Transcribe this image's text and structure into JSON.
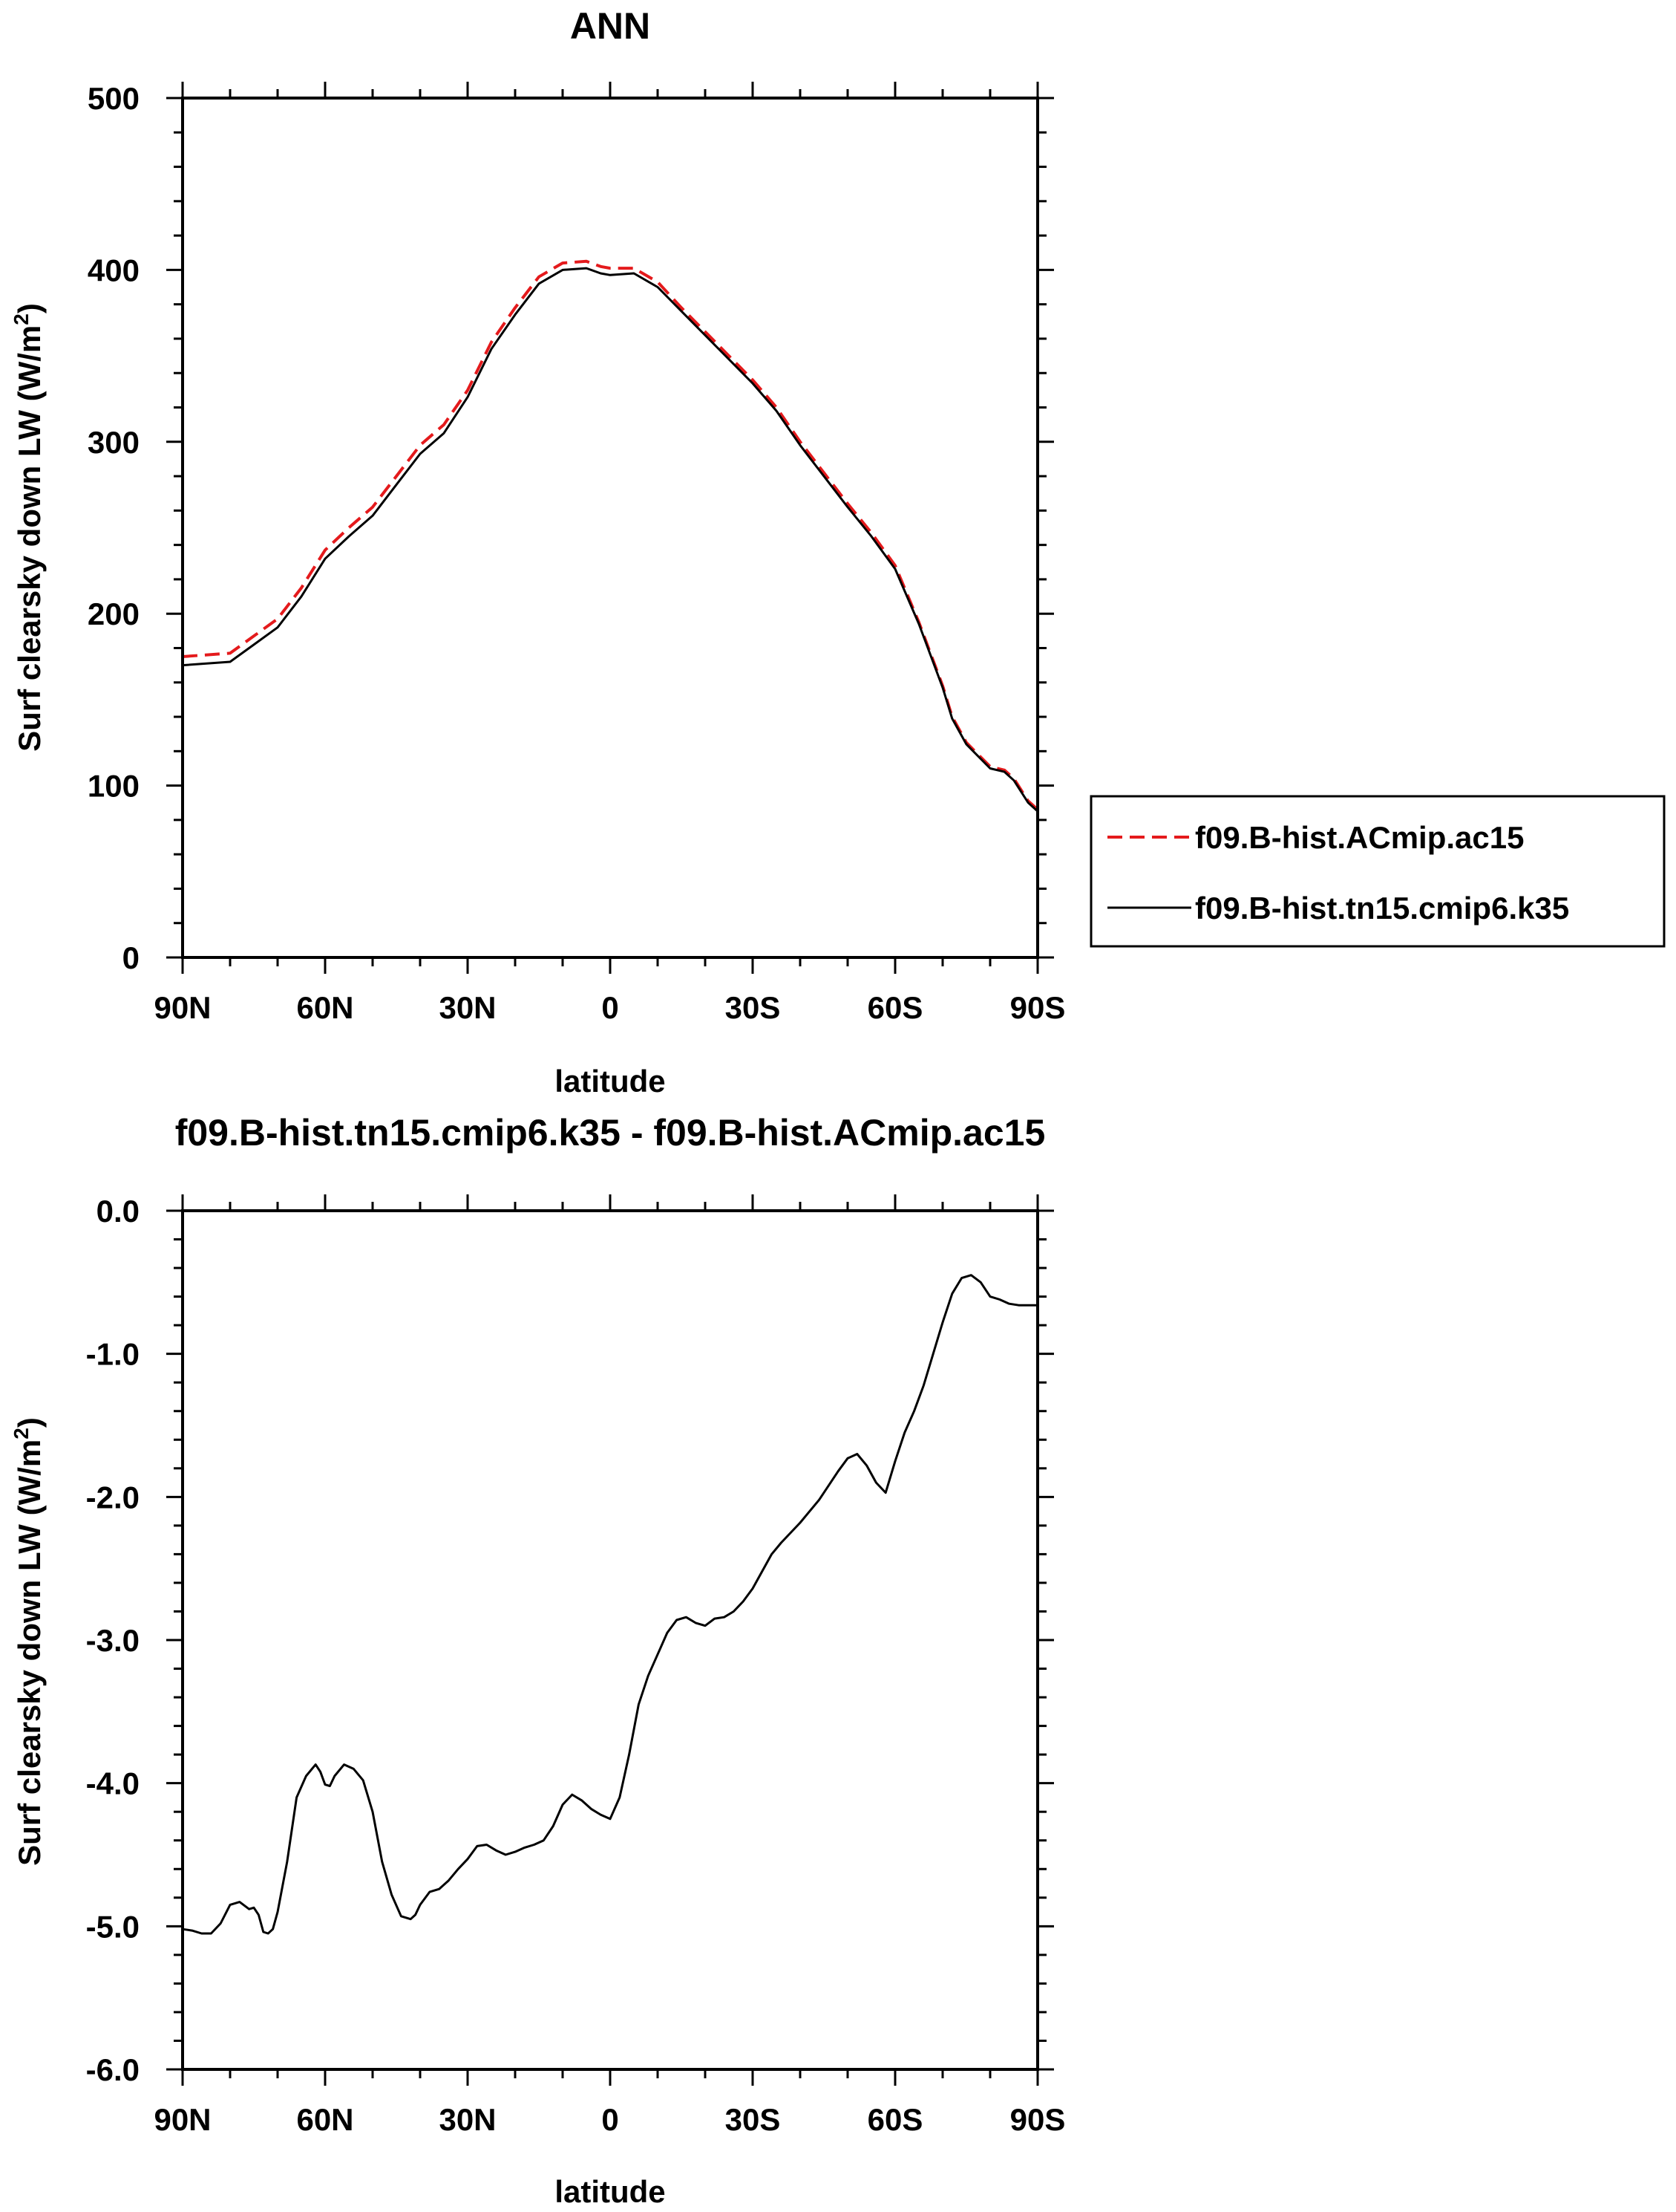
{
  "chart_data": [
    {
      "type": "line",
      "title": "ANN",
      "xlabel": "latitude",
      "ylabel": "Surf clearsky down LW (W/m2)",
      "ylabel_main": "Surf clearsky down LW (W/m",
      "ylabel_sup": "2",
      "ylabel_end": ")",
      "xlim": [
        90,
        -90
      ],
      "ylim": [
        0,
        500
      ],
      "x_ticks": [
        90,
        60,
        30,
        0,
        -30,
        -60,
        -90
      ],
      "x_tick_labels": [
        "90N",
        "60N",
        "30N",
        "0",
        "30S",
        "60S",
        "90S"
      ],
      "y_ticks": [
        0,
        100,
        200,
        300,
        400,
        500
      ],
      "y_tick_labels": [
        "0",
        "100",
        "200",
        "300",
        "400",
        "500"
      ],
      "legend_position": "right",
      "series": [
        {
          "name": "f09.B-hist.ACmip.ac15",
          "color": "#e41a1c",
          "dash": "dashed",
          "x": [
            90,
            80,
            75,
            70,
            65,
            60,
            55,
            50,
            45,
            40,
            35,
            30,
            25,
            20,
            15,
            10,
            5,
            2,
            0,
            -5,
            -10,
            -15,
            -20,
            -25,
            -30,
            -35,
            -40,
            -45,
            -50,
            -55,
            -60,
            -65,
            -70,
            -72,
            -75,
            -80,
            -83,
            -85,
            -88,
            -90
          ],
          "y": [
            175,
            177,
            187,
            197,
            215,
            237,
            250,
            262,
            280,
            298,
            310,
            330,
            358,
            378,
            396,
            404,
            405,
            402,
            401,
            401,
            393,
            378,
            364,
            350,
            336,
            320,
            300,
            282,
            264,
            247,
            228,
            195,
            158,
            140,
            125,
            111,
            109,
            104,
            91,
            86
          ]
        },
        {
          "name": "f09.B-hist.tn15.cmip6.k35",
          "color": "#000000",
          "dash": "solid",
          "x": [
            90,
            80,
            75,
            70,
            65,
            60,
            55,
            50,
            45,
            40,
            35,
            30,
            25,
            20,
            15,
            10,
            5,
            2,
            0,
            -5,
            -10,
            -15,
            -20,
            -25,
            -30,
            -35,
            -40,
            -45,
            -50,
            -55,
            -60,
            -65,
            -70,
            -72,
            -75,
            -80,
            -83,
            -85,
            -88,
            -90
          ],
          "y": [
            170,
            172,
            182,
            192,
            210,
            232,
            245,
            257,
            275,
            293,
            305,
            326,
            354,
            374,
            392,
            400,
            401,
            398,
            397,
            398,
            390,
            376,
            362,
            348,
            334,
            318,
            298,
            280,
            262,
            245,
            226,
            194,
            157,
            139,
            124,
            110,
            108,
            103,
            90,
            85
          ]
        }
      ]
    },
    {
      "type": "line",
      "title": "f09.B-hist.tn15.cmip6.k35 - f09.B-hist.ACmip.ac15",
      "xlabel": "latitude",
      "ylabel": "Surf clearsky down LW (W/m2)",
      "ylabel_main": "Surf clearsky down LW (W/m",
      "ylabel_sup": "2",
      "ylabel_end": ")",
      "xlim": [
        90,
        -90
      ],
      "ylim": [
        -6,
        0
      ],
      "x_ticks": [
        90,
        60,
        30,
        0,
        -30,
        -60,
        -90
      ],
      "x_tick_labels": [
        "90N",
        "60N",
        "30N",
        "0",
        "30S",
        "60S",
        "90S"
      ],
      "y_ticks": [
        0,
        -1,
        -2,
        -3,
        -4,
        -5,
        -6
      ],
      "y_tick_labels": [
        "0.0",
        "-1.0",
        "-2.0",
        "-3.0",
        "-4.0",
        "-5.0",
        "-6.0"
      ],
      "series": [
        {
          "color": "#000000",
          "dash": "solid",
          "x": [
            90,
            88,
            86,
            84,
            82,
            80,
            78,
            76,
            75,
            74,
            73,
            72,
            71,
            70,
            68,
            66,
            64,
            62,
            61,
            60,
            59,
            58,
            56,
            54,
            52,
            50,
            48,
            46,
            44,
            42,
            41,
            40,
            38,
            36,
            34,
            32,
            30,
            28,
            26,
            24,
            22,
            20,
            18,
            16,
            14,
            12,
            10,
            8,
            6,
            4,
            2,
            0,
            -2,
            -4,
            -6,
            -8,
            -10,
            -12,
            -14,
            -16,
            -18,
            -20,
            -22,
            -24,
            -26,
            -28,
            -30,
            -32,
            -34,
            -36,
            -38,
            -40,
            -42,
            -44,
            -46,
            -48,
            -50,
            -52,
            -54,
            -56,
            -58,
            -60,
            -62,
            -64,
            -66,
            -68,
            -70,
            -72,
            -74,
            -76,
            -78,
            -80,
            -82,
            -84,
            -86,
            -88,
            -90
          ],
          "y": [
            -5.02,
            -5.03,
            -5.05,
            -5.05,
            -4.98,
            -4.85,
            -4.83,
            -4.88,
            -4.87,
            -4.92,
            -5.04,
            -5.05,
            -5.02,
            -4.9,
            -4.55,
            -4.1,
            -3.95,
            -3.87,
            -3.92,
            -4.01,
            -4.02,
            -3.95,
            -3.87,
            -3.9,
            -3.98,
            -4.2,
            -4.55,
            -4.78,
            -4.93,
            -4.95,
            -4.92,
            -4.85,
            -4.76,
            -4.74,
            -4.68,
            -4.6,
            -4.53,
            -4.44,
            -4.43,
            -4.47,
            -4.5,
            -4.48,
            -4.45,
            -4.43,
            -4.4,
            -4.3,
            -4.15,
            -4.08,
            -4.12,
            -4.18,
            -4.22,
            -4.25,
            -4.1,
            -3.8,
            -3.45,
            -3.25,
            -3.1,
            -2.95,
            -2.86,
            -2.84,
            -2.88,
            -2.9,
            -2.85,
            -2.84,
            -2.8,
            -2.73,
            -2.64,
            -2.52,
            -2.4,
            -2.32,
            -2.25,
            -2.18,
            -2.1,
            -2.02,
            -1.92,
            -1.82,
            -1.73,
            -1.7,
            -1.78,
            -1.9,
            -1.97,
            -1.75,
            -1.55,
            -1.4,
            -1.22,
            -1.0,
            -0.78,
            -0.58,
            -0.47,
            -0.45,
            -0.5,
            -0.6,
            -0.62,
            -0.65,
            -0.66,
            -0.66,
            -0.66
          ]
        }
      ]
    }
  ]
}
